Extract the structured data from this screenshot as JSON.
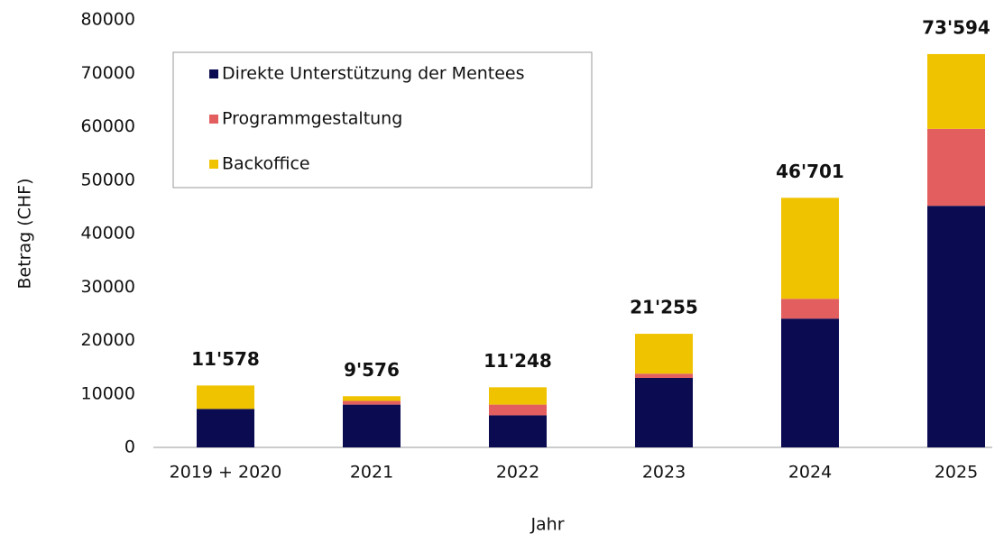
{
  "chart_data": {
    "type": "stacked_bar",
    "x_label": "Jahr",
    "y_label": "Betrag (CHF)",
    "categories": [
      "2019 + 2020",
      "2021",
      "2022",
      "2023",
      "2024",
      "2025"
    ],
    "series": [
      {
        "name": "Direkte Unterstützung der Mentees",
        "color": "#0b0b52",
        "values": [
          7200,
          8000,
          6000,
          13000,
          24100,
          45200
        ]
      },
      {
        "name": "Programmgestaltung",
        "color": "#e35f5f",
        "values": [
          0,
          700,
          2000,
          800,
          3700,
          14400
        ]
      },
      {
        "name": "Backoffice",
        "color": "#f0c300",
        "values": [
          4378,
          876,
          3248,
          7455,
          18901,
          13994
        ]
      }
    ],
    "totals": [
      11578,
      9576,
      11248,
      21255,
      46701,
      73594
    ],
    "total_labels": [
      "11'578",
      "9'576",
      "11'248",
      "21'255",
      "46'701",
      "73'594"
    ],
    "ylim": [
      0,
      80000
    ],
    "yticks": [
      0,
      10000,
      20000,
      30000,
      40000,
      50000,
      60000,
      70000,
      80000
    ],
    "legend": "upper left"
  }
}
